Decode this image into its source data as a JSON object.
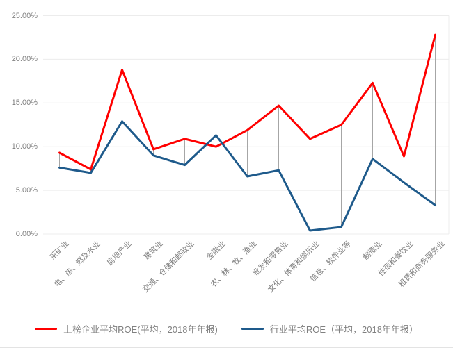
{
  "chart_data": {
    "type": "line",
    "title": "",
    "categories": [
      "采矿业",
      "电、热、燃及水业",
      "房地产业",
      "建筑业",
      "交通、仓储和邮政业",
      "金融业",
      "农、林、牧、渔业",
      "批发和零售业",
      "文化、体育和娱乐业",
      "信息、软件业等",
      "制造业",
      "住宿和餐饮业",
      "租赁和商务服务业"
    ],
    "series": [
      {
        "name": "上榜企业平均ROE(平均，2018年年报)",
        "color": "#FF0000",
        "values": [
          9.3,
          7.4,
          18.8,
          9.7,
          10.9,
          10.0,
          11.9,
          14.7,
          10.9,
          12.5,
          17.3,
          8.9,
          22.8
        ]
      },
      {
        "name": "行业平均ROE（平均，2018年年报）",
        "color": "#1E5A8B",
        "values": [
          7.6,
          7.0,
          12.9,
          9.0,
          7.9,
          11.3,
          6.6,
          7.3,
          0.4,
          0.8,
          8.6,
          5.9,
          3.3
        ]
      }
    ],
    "xlabel": "",
    "ylabel": "",
    "ylim": [
      0,
      25
    ],
    "y_ticks": [
      {
        "value": 0,
        "label": "0.00%"
      },
      {
        "value": 5,
        "label": "5.00%"
      },
      {
        "value": 10,
        "label": "10.00%"
      },
      {
        "value": 15,
        "label": "15.00%"
      },
      {
        "value": 20,
        "label": "20.00%"
      },
      {
        "value": 25,
        "label": "25.00%"
      }
    ],
    "grid": "horizontal-only",
    "high_low_lines": true,
    "legend_position": "bottom"
  },
  "colors": {
    "grid": "#ececec",
    "connector": "#a6a6a6",
    "axis_label": "#7f7f7f",
    "legend_text": "#808080",
    "divider": "#e3e3e3"
  }
}
